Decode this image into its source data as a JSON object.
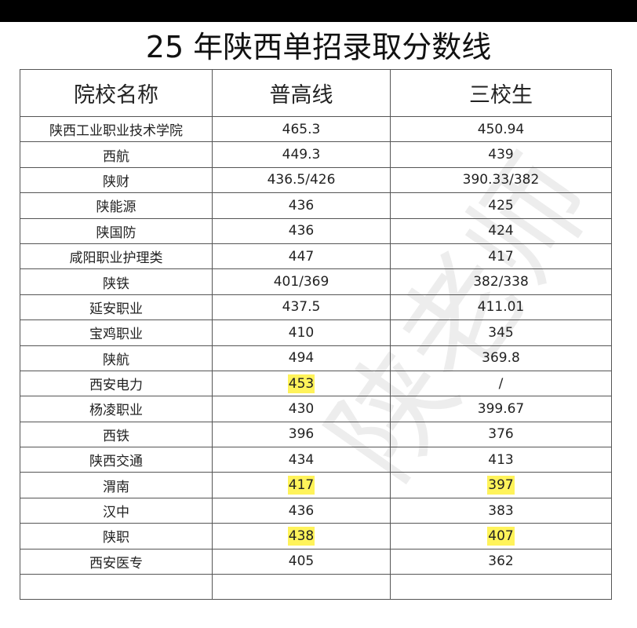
{
  "header": {
    "title": "25 年陕西单招录取分数线"
  },
  "watermark": "陕老师",
  "table": {
    "columns": [
      "院校名称",
      "普高线",
      "三校生"
    ],
    "rows": [
      [
        "陕西工业职业技术学院",
        "465.3",
        "450.94"
      ],
      [
        "西航",
        "449.3",
        "439"
      ],
      [
        "陕财",
        "436.5/426",
        "390.33/382"
      ],
      [
        "陕能源",
        "436",
        "425"
      ],
      [
        "陕国防",
        "436",
        "424"
      ],
      [
        "咸阳职业护理类",
        "447",
        "417"
      ],
      [
        "陕铁",
        "401/369",
        "382/338"
      ],
      [
        "延安职业",
        "437.5",
        "411.01"
      ],
      [
        "宝鸡职业",
        "410",
        "345"
      ],
      [
        "陕航",
        "494",
        "369.8"
      ],
      [
        "西安电力",
        "453",
        "/"
      ],
      [
        "杨凌职业",
        "430",
        "399.67"
      ],
      [
        "西铁",
        "396",
        "376"
      ],
      [
        "陕西交通",
        "434",
        "413"
      ],
      [
        "渭南",
        "417",
        "397"
      ],
      [
        "汉中",
        "436",
        "383"
      ],
      [
        "陕职",
        "438",
        "407"
      ],
      [
        "西安医专",
        "405",
        "362"
      ]
    ]
  }
}
